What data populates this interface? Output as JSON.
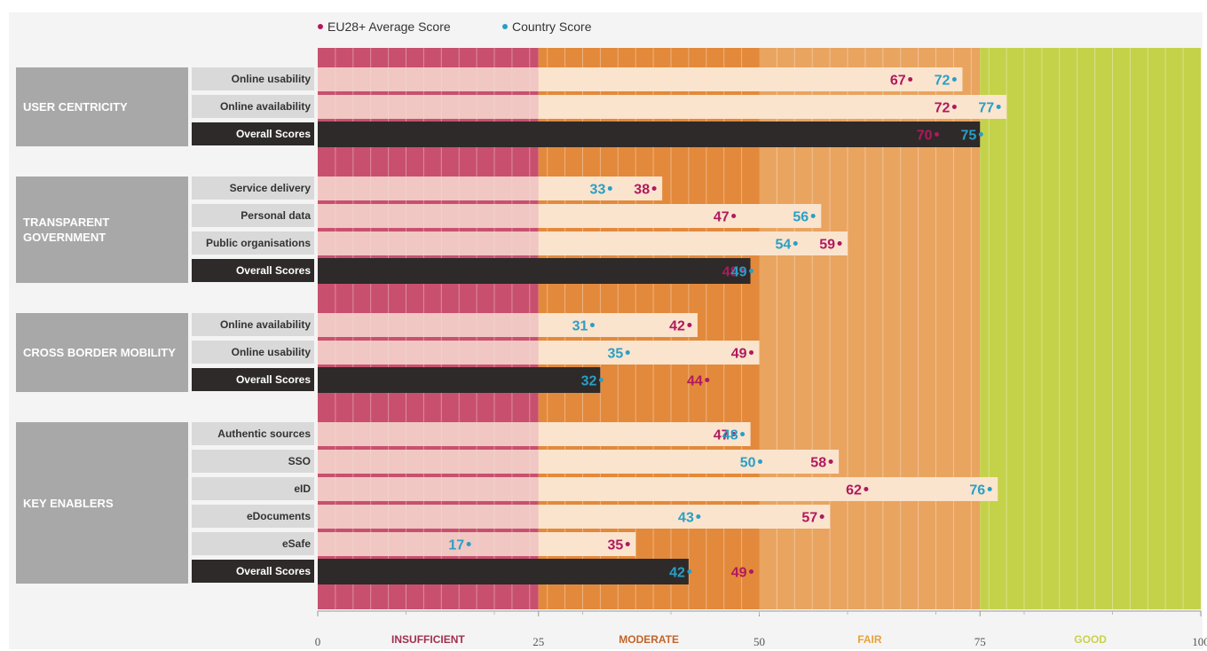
{
  "legend": {
    "eu": {
      "label": "EU28+ Average Score",
      "color": "#b0195e"
    },
    "country": {
      "label": "Country Score",
      "color": "#2a9fc6"
    }
  },
  "zones": [
    {
      "label": "INSUFFICIENT",
      "from": 0,
      "to": 25,
      "color": "#c8506e"
    },
    {
      "label": "MODERATE",
      "from": 25,
      "to": 50,
      "color": "#e3893b"
    },
    {
      "label": "FAIR",
      "from": 50,
      "to": 75,
      "color": "#e9a460"
    },
    {
      "label": "GOOD",
      "from": 75,
      "to": 100,
      "color": "#c4d24a"
    }
  ],
  "chart_data": {
    "type": "bar",
    "xlim": [
      0,
      100
    ],
    "ticks": [
      0,
      25,
      50,
      75,
      100
    ],
    "series_names": [
      "EU28+ Average Score",
      "Country Score"
    ],
    "groups": [
      {
        "label": "USER CENTRICITY",
        "rows": [
          {
            "label": "Online usability",
            "eu": 67,
            "country": 72
          },
          {
            "label": "Online availability",
            "eu": 72,
            "country": 77
          },
          {
            "label": "Overall Scores",
            "eu": 70,
            "country": 75,
            "overall": true
          }
        ]
      },
      {
        "label": "TRANSPARENT GOVERNMENT",
        "rows": [
          {
            "label": "Service delivery",
            "eu": 38,
            "country": 33
          },
          {
            "label": "Personal data",
            "eu": 47,
            "country": 56
          },
          {
            "label": "Public organisations",
            "eu": 59,
            "country": 54
          },
          {
            "label": "Overall Scores",
            "eu": 48,
            "country": 49,
            "overall": true
          }
        ]
      },
      {
        "label": "CROSS BORDER MOBILITY",
        "rows": [
          {
            "label": "Online availability",
            "eu": 42,
            "country": 31
          },
          {
            "label": "Online usability",
            "eu": 49,
            "country": 35
          },
          {
            "label": "Overall Scores",
            "eu": 44,
            "country": 32,
            "overall": true
          }
        ]
      },
      {
        "label": "KEY ENABLERS",
        "rows": [
          {
            "label": "Authentic sources",
            "eu": 47,
            "country": 48
          },
          {
            "label": "SSO",
            "eu": 58,
            "country": 50
          },
          {
            "label": "eID",
            "eu": 62,
            "country": 76
          },
          {
            "label": "eDocuments",
            "eu": 57,
            "country": 43
          },
          {
            "label": "eSafe",
            "eu": 35,
            "country": 17
          },
          {
            "label": "Overall Scores",
            "eu": 49,
            "country": 42,
            "overall": true
          }
        ]
      }
    ]
  }
}
